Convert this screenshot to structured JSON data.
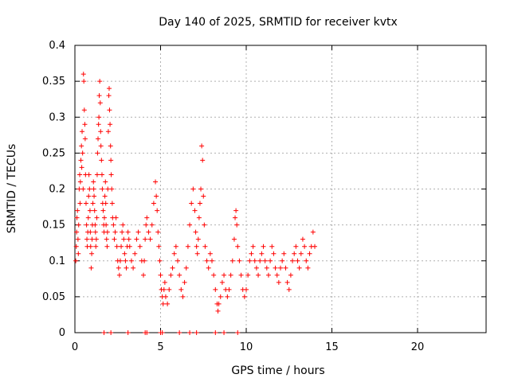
{
  "chart_data": {
    "type": "scatter",
    "title": "Day 140 of 2025, SRMTID for receiver kvtx",
    "xlabel": "GPS time / hours",
    "ylabel": "SRMTID / TECUs",
    "xlim": [
      0,
      24
    ],
    "ylim": [
      0,
      0.4
    ],
    "xticks": [
      0,
      5,
      10,
      15,
      20
    ],
    "yticks": [
      0,
      0.05,
      0.1,
      0.15,
      0.2,
      0.25,
      0.3,
      0.35,
      0.4
    ],
    "ytick_labels": [
      "0",
      "0.05",
      "0.1",
      "0.15",
      "0.2",
      "0.25",
      "0.3",
      "0.35",
      "0.4"
    ],
    "xtick_labels": [
      "0",
      "5",
      "10",
      "15",
      "20"
    ],
    "grid": true,
    "marker": "+",
    "color": "#ff0000",
    "series": [
      {
        "name": "SRMTID",
        "points": [
          [
            0.05,
            0.1
          ],
          [
            0.08,
            0.12
          ],
          [
            0.1,
            0.14
          ],
          [
            0.12,
            0.16
          ],
          [
            0.15,
            0.17
          ],
          [
            0.18,
            0.13
          ],
          [
            0.2,
            0.11
          ],
          [
            0.22,
            0.15
          ],
          [
            0.25,
            0.2
          ],
          [
            0.28,
            0.22
          ],
          [
            0.3,
            0.18
          ],
          [
            0.32,
            0.21
          ],
          [
            0.35,
            0.24
          ],
          [
            0.38,
            0.26
          ],
          [
            0.4,
            0.23
          ],
          [
            0.42,
            0.28
          ],
          [
            0.45,
            0.25
          ],
          [
            0.48,
            0.2
          ],
          [
            0.5,
            0.36
          ],
          [
            0.52,
            0.35
          ],
          [
            0.55,
            0.31
          ],
          [
            0.58,
            0.29
          ],
          [
            0.6,
            0.27
          ],
          [
            0.62,
            0.22
          ],
          [
            0.65,
            0.18
          ],
          [
            0.68,
            0.15
          ],
          [
            0.7,
            0.13
          ],
          [
            0.72,
            0.12
          ],
          [
            0.75,
            0.14
          ],
          [
            0.78,
            0.16
          ],
          [
            0.8,
            0.19
          ],
          [
            0.82,
            0.22
          ],
          [
            0.85,
            0.2
          ],
          [
            0.88,
            0.17
          ],
          [
            0.9,
            0.14
          ],
          [
            0.92,
            0.12
          ],
          [
            0.95,
            0.09
          ],
          [
            0.98,
            0.11
          ],
          [
            1.0,
            0.13
          ],
          [
            1.02,
            0.15
          ],
          [
            1.05,
            0.18
          ],
          [
            1.08,
            0.21
          ],
          [
            1.1,
            0.2
          ],
          [
            1.12,
            0.19
          ],
          [
            1.15,
            0.17
          ],
          [
            1.18,
            0.15
          ],
          [
            1.2,
            0.14
          ],
          [
            1.22,
            0.12
          ],
          [
            1.25,
            0.13
          ],
          [
            1.28,
            0.16
          ],
          [
            1.3,
            0.22
          ],
          [
            1.32,
            0.25
          ],
          [
            1.35,
            0.27
          ],
          [
            1.38,
            0.29
          ],
          [
            1.4,
            0.3
          ],
          [
            1.42,
            0.33
          ],
          [
            1.45,
            0.35
          ],
          [
            1.48,
            0.32
          ],
          [
            1.5,
            0.28
          ],
          [
            1.52,
            0.26
          ],
          [
            1.55,
            0.24
          ],
          [
            1.58,
            0.22
          ],
          [
            1.6,
            0.2
          ],
          [
            1.62,
            0.18
          ],
          [
            1.65,
            0.17
          ],
          [
            1.68,
            0.15
          ],
          [
            1.7,
            0.14
          ],
          [
            1.72,
            0.16
          ],
          [
            1.75,
            0.19
          ],
          [
            1.78,
            0.21
          ],
          [
            1.8,
            0.18
          ],
          [
            1.82,
            0.15
          ],
          [
            1.85,
            0.13
          ],
          [
            1.88,
            0.12
          ],
          [
            1.9,
            0.14
          ],
          [
            1.92,
            0.2
          ],
          [
            1.95,
            0.28
          ],
          [
            1.98,
            0.33
          ],
          [
            2.0,
            0.34
          ],
          [
            2.02,
            0.31
          ],
          [
            2.05,
            0.29
          ],
          [
            2.08,
            0.26
          ],
          [
            2.1,
            0.24
          ],
          [
            2.12,
            0.22
          ],
          [
            2.15,
            0.2
          ],
          [
            2.18,
            0.18
          ],
          [
            2.2,
            0.16
          ],
          [
            2.25,
            0.15
          ],
          [
            2.3,
            0.13
          ],
          [
            2.35,
            0.14
          ],
          [
            2.4,
            0.16
          ],
          [
            2.45,
            0.12
          ],
          [
            2.5,
            0.1
          ],
          [
            2.55,
            0.09
          ],
          [
            2.6,
            0.08
          ],
          [
            2.65,
            0.1
          ],
          [
            2.7,
            0.12
          ],
          [
            2.75,
            0.14
          ],
          [
            2.8,
            0.15
          ],
          [
            2.85,
            0.13
          ],
          [
            2.9,
            0.11
          ],
          [
            2.95,
            0.1
          ],
          [
            3.0,
            0.09
          ],
          [
            3.05,
            0.12
          ],
          [
            3.1,
            0.14
          ],
          [
            3.15,
            0.13
          ],
          [
            3.2,
            0.12
          ],
          [
            3.3,
            0.1
          ],
          [
            3.4,
            0.09
          ],
          [
            3.5,
            0.11
          ],
          [
            3.6,
            0.13
          ],
          [
            3.7,
            0.14
          ],
          [
            3.8,
            0.12
          ],
          [
            3.9,
            0.1
          ],
          [
            4.0,
            0.08
          ],
          [
            4.05,
            0.1
          ],
          [
            4.1,
            0.13
          ],
          [
            4.15,
            0.15
          ],
          [
            4.2,
            0.16
          ],
          [
            4.3,
            0.14
          ],
          [
            4.4,
            0.13
          ],
          [
            4.5,
            0.15
          ],
          [
            4.6,
            0.18
          ],
          [
            4.7,
            0.21
          ],
          [
            4.75,
            0.19
          ],
          [
            4.8,
            0.17
          ],
          [
            4.85,
            0.14
          ],
          [
            4.9,
            0.12
          ],
          [
            4.95,
            0.1
          ],
          [
            5.0,
            0.08
          ],
          [
            5.05,
            0.06
          ],
          [
            5.1,
            0.05
          ],
          [
            5.15,
            0.04
          ],
          [
            5.2,
            0.06
          ],
          [
            5.25,
            0.07
          ],
          [
            5.3,
            0.05
          ],
          [
            5.4,
            0.04
          ],
          [
            5.5,
            0.06
          ],
          [
            5.6,
            0.08
          ],
          [
            5.7,
            0.09
          ],
          [
            5.8,
            0.11
          ],
          [
            5.9,
            0.12
          ],
          [
            6.0,
            0.1
          ],
          [
            6.1,
            0.08
          ],
          [
            6.2,
            0.06
          ],
          [
            6.3,
            0.05
          ],
          [
            6.4,
            0.07
          ],
          [
            6.5,
            0.09
          ],
          [
            6.6,
            0.12
          ],
          [
            6.7,
            0.15
          ],
          [
            6.8,
            0.18
          ],
          [
            6.9,
            0.2
          ],
          [
            7.0,
            0.17
          ],
          [
            7.05,
            0.14
          ],
          [
            7.1,
            0.12
          ],
          [
            7.15,
            0.11
          ],
          [
            7.2,
            0.13
          ],
          [
            7.25,
            0.16
          ],
          [
            7.3,
            0.18
          ],
          [
            7.35,
            0.2
          ],
          [
            7.4,
            0.26
          ],
          [
            7.45,
            0.24
          ],
          [
            7.5,
            0.19
          ],
          [
            7.55,
            0.15
          ],
          [
            7.6,
            0.12
          ],
          [
            7.7,
            0.1
          ],
          [
            7.8,
            0.09
          ],
          [
            7.9,
            0.11
          ],
          [
            8.0,
            0.1
          ],
          [
            8.1,
            0.08
          ],
          [
            8.2,
            0.06
          ],
          [
            8.3,
            0.04
          ],
          [
            8.35,
            0.03
          ],
          [
            8.4,
            0.04
          ],
          [
            8.5,
            0.05
          ],
          [
            8.6,
            0.07
          ],
          [
            8.7,
            0.08
          ],
          [
            8.8,
            0.06
          ],
          [
            8.9,
            0.05
          ],
          [
            9.0,
            0.06
          ],
          [
            9.1,
            0.08
          ],
          [
            9.2,
            0.1
          ],
          [
            9.3,
            0.13
          ],
          [
            9.35,
            0.16
          ],
          [
            9.4,
            0.17
          ],
          [
            9.45,
            0.15
          ],
          [
            9.5,
            0.12
          ],
          [
            9.6,
            0.1
          ],
          [
            9.7,
            0.08
          ],
          [
            9.8,
            0.06
          ],
          [
            9.9,
            0.05
          ],
          [
            10.0,
            0.06
          ],
          [
            10.1,
            0.08
          ],
          [
            10.2,
            0.1
          ],
          [
            10.3,
            0.11
          ],
          [
            10.4,
            0.12
          ],
          [
            10.5,
            0.1
          ],
          [
            10.6,
            0.09
          ],
          [
            10.7,
            0.08
          ],
          [
            10.8,
            0.1
          ],
          [
            10.9,
            0.11
          ],
          [
            11.0,
            0.12
          ],
          [
            11.1,
            0.1
          ],
          [
            11.2,
            0.09
          ],
          [
            11.3,
            0.08
          ],
          [
            11.4,
            0.1
          ],
          [
            11.5,
            0.12
          ],
          [
            11.6,
            0.11
          ],
          [
            11.7,
            0.09
          ],
          [
            11.8,
            0.08
          ],
          [
            11.9,
            0.07
          ],
          [
            12.0,
            0.09
          ],
          [
            12.1,
            0.1
          ],
          [
            12.2,
            0.11
          ],
          [
            12.3,
            0.09
          ],
          [
            12.4,
            0.07
          ],
          [
            12.5,
            0.06
          ],
          [
            12.6,
            0.08
          ],
          [
            12.7,
            0.1
          ],
          [
            12.8,
            0.11
          ],
          [
            12.9,
            0.12
          ],
          [
            13.0,
            0.1
          ],
          [
            13.1,
            0.09
          ],
          [
            13.2,
            0.11
          ],
          [
            13.3,
            0.13
          ],
          [
            13.4,
            0.12
          ],
          [
            13.5,
            0.1
          ],
          [
            13.6,
            0.09
          ],
          [
            13.7,
            0.11
          ],
          [
            13.8,
            0.12
          ],
          [
            13.9,
            0.14
          ],
          [
            14.0,
            0.12
          ],
          [
            1.7,
            0
          ],
          [
            2.1,
            0
          ],
          [
            3.1,
            0
          ],
          [
            4.1,
            0
          ],
          [
            4.2,
            0
          ],
          [
            5.0,
            0
          ],
          [
            5.1,
            0
          ],
          [
            6.1,
            0
          ],
          [
            6.7,
            0
          ],
          [
            7.1,
            0
          ],
          [
            8.2,
            0
          ],
          [
            8.7,
            0
          ],
          [
            9.5,
            0
          ]
        ]
      }
    ]
  }
}
